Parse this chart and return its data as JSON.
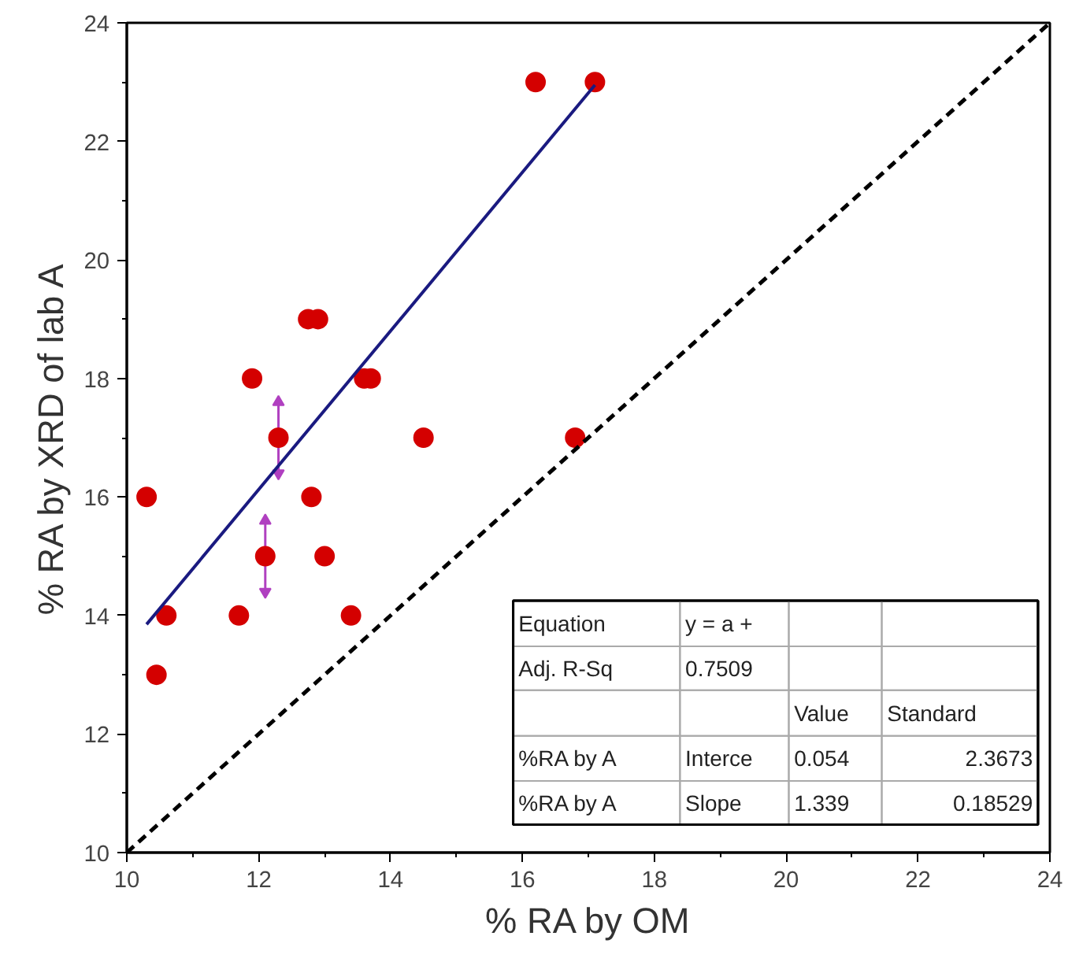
{
  "chart_data": {
    "type": "scatter",
    "xlabel": "% RA by OM",
    "ylabel": "% RA by XRD of lab A",
    "xlim": [
      10,
      24
    ],
    "ylim": [
      10,
      24
    ],
    "xticks": [
      10,
      12,
      14,
      16,
      18,
      20,
      22,
      24
    ],
    "yticks": [
      10,
      12,
      14,
      16,
      18,
      20,
      22,
      24
    ],
    "grid": false,
    "series": [
      {
        "marker": "circle",
        "color": "#d40000",
        "x": [
          10.3,
          10.45,
          10.6,
          11.7,
          11.9,
          12.1,
          12.3,
          12.75,
          12.9,
          12.8,
          13.0,
          13.4,
          13.6,
          13.7,
          14.5,
          16.2,
          17.1,
          16.8
        ],
        "values": [
          16,
          13,
          14,
          14,
          18,
          15,
          17,
          19,
          19,
          16,
          15,
          14,
          18,
          18,
          17,
          23,
          23,
          17
        ],
        "errors": [
          null,
          null,
          null,
          null,
          null,
          0.6,
          0.6,
          null,
          null,
          null,
          null,
          null,
          null,
          null,
          null,
          null,
          null,
          null
        ]
      },
      {
        "type": "line",
        "marker": "none",
        "color": "#1a1a80",
        "line_style": "solid",
        "x": [
          10.3,
          17.1
        ],
        "values": [
          13.85,
          22.95
        ]
      },
      {
        "type": "line",
        "marker": "none",
        "color": "#000000",
        "line_style": "dashed",
        "x": [
          10,
          24
        ],
        "values": [
          10,
          24
        ]
      }
    ],
    "annotations": [
      "Equation",
      "y = a +",
      "Adj. R-Sq",
      "0.7509",
      "Value",
      "Standard",
      "%RA by A",
      "Interce",
      "0.054",
      "2.3673",
      "%RA by A",
      "Slope",
      "1.339",
      "0.18529"
    ]
  }
}
